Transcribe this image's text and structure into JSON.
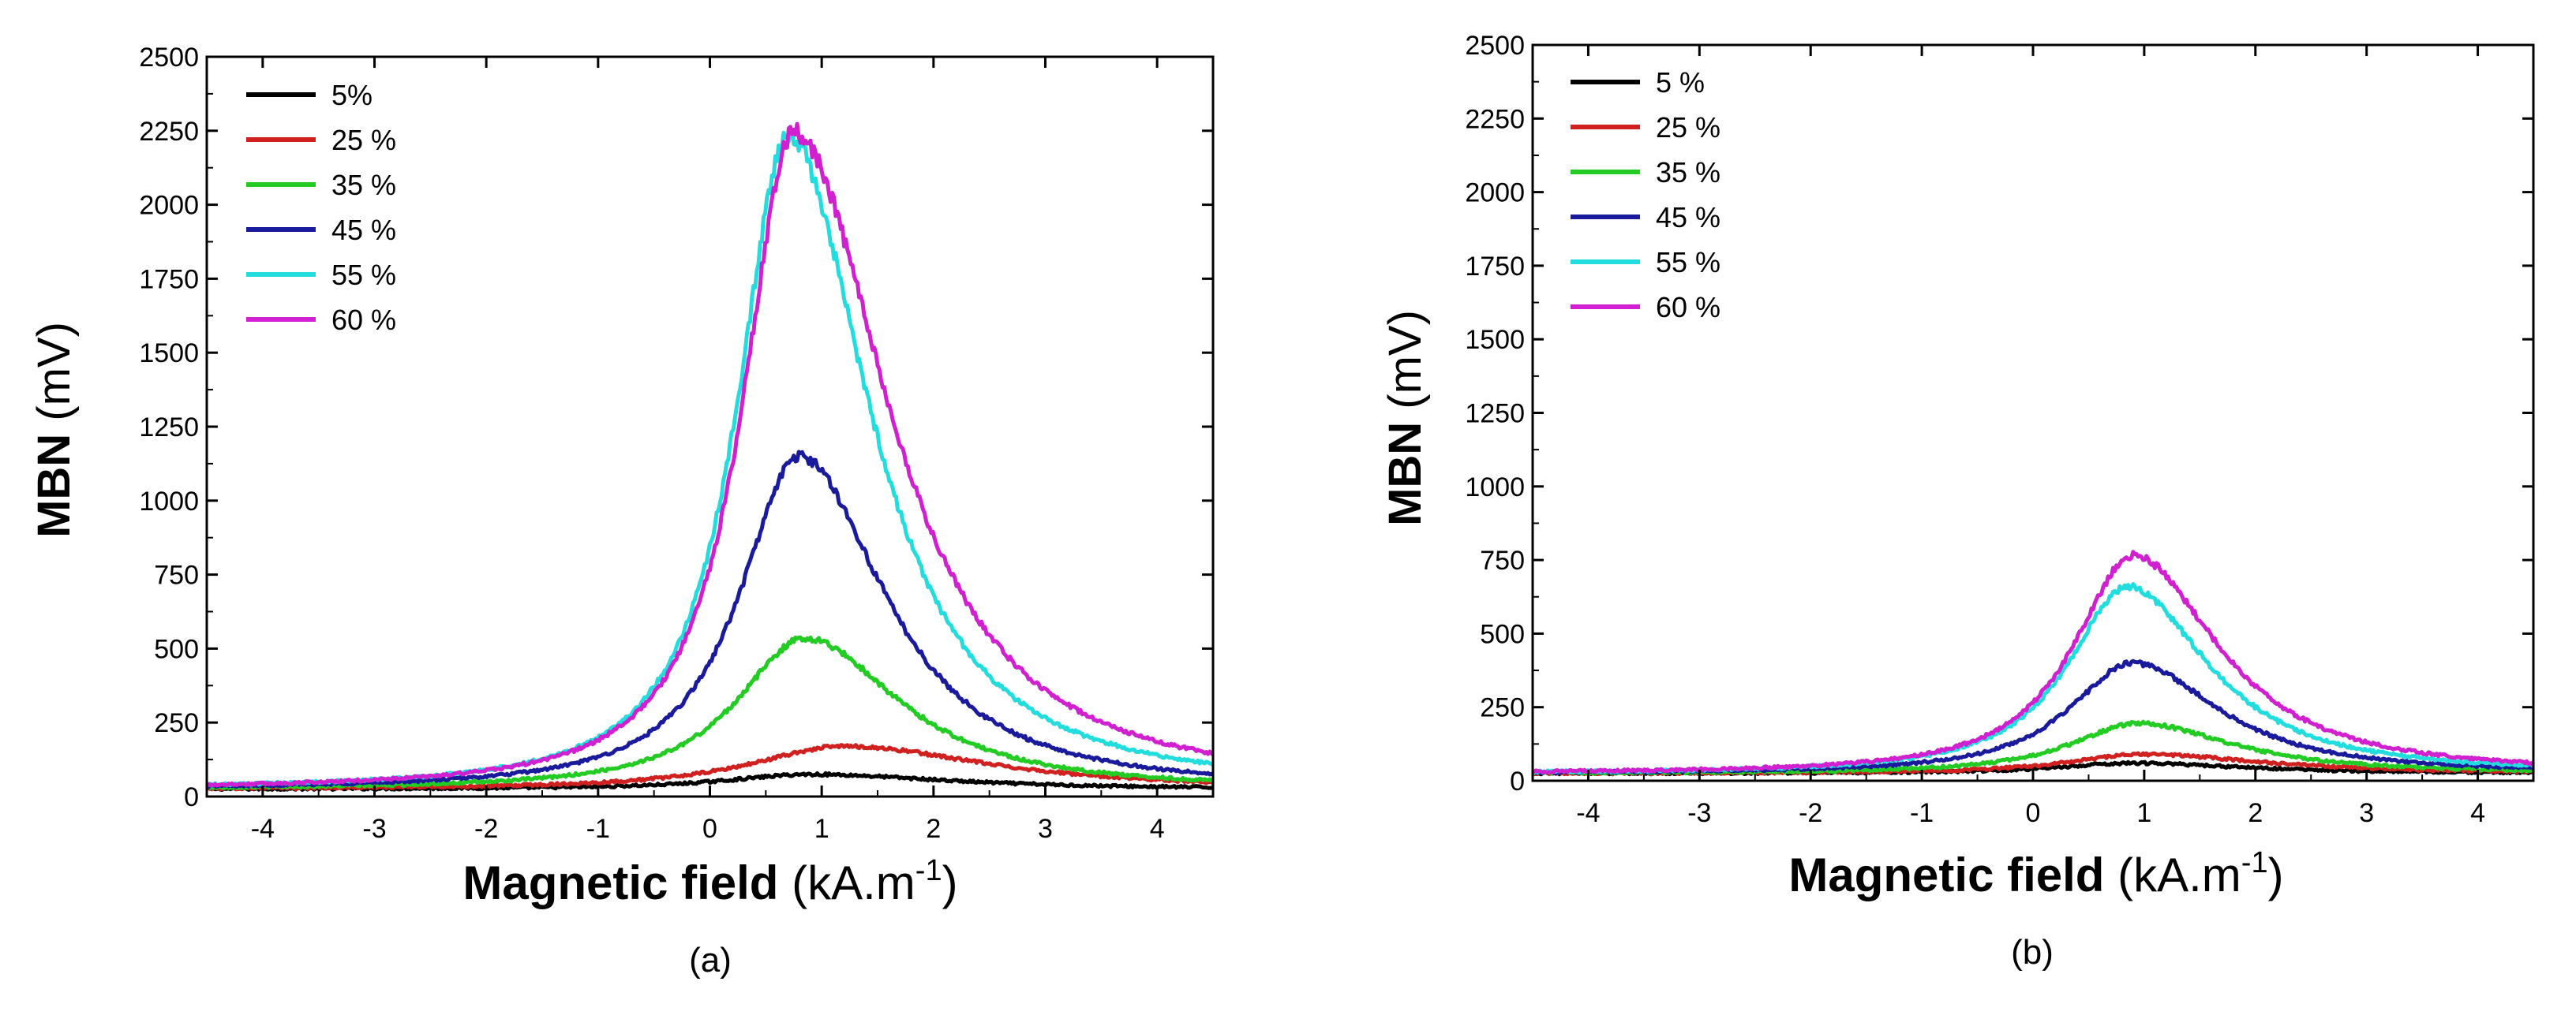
{
  "chart_data": [
    {
      "type": "line",
      "caption": "(a)",
      "xlabel_bold": "Magnetic field",
      "xlabel_unit": "(kA.m",
      "xlabel_sup": "-1",
      "xlabel_close": ")",
      "ylabel_bold": "MBN",
      "ylabel_unit": "(mV)",
      "xlim": [
        -4.5,
        4.5
      ],
      "ylim": [
        0,
        2500
      ],
      "xticks": [
        -4,
        -3,
        -2,
        -1,
        0,
        1,
        2,
        3,
        4
      ],
      "yticks": [
        0,
        250,
        500,
        750,
        1000,
        1250,
        1500,
        1750,
        2000,
        2250,
        2500
      ],
      "legend_position": "top-left",
      "series": [
        {
          "name": "5%",
          "color": "#000000",
          "baseline": 25,
          "peak": 75,
          "peak_x": 0.9,
          "wl": 1.0,
          "wr": 1.6
        },
        {
          "name": "25 %",
          "color": "#d02020",
          "baseline": 25,
          "peak": 170,
          "peak_x": 1.2,
          "wl": 1.1,
          "wr": 1.7
        },
        {
          "name": "35 %",
          "color": "#22cc22",
          "baseline": 25,
          "peak": 535,
          "peak_x": 0.85,
          "wl": 0.8,
          "wr": 1.1
        },
        {
          "name": "45 %",
          "color": "#1a1a9c",
          "baseline": 25,
          "peak": 1150,
          "peak_x": 0.8,
          "wl": 0.7,
          "wr": 1.0
        },
        {
          "name": "55 %",
          "color": "#22dddd",
          "baseline": 25,
          "peak": 2230,
          "peak_x": 0.7,
          "wl": 0.6,
          "wr": 0.95
        },
        {
          "name": "60 %",
          "color": "#d020d0",
          "baseline": 25,
          "peak": 2245,
          "peak_x": 0.75,
          "wl": 0.6,
          "wr": 1.1
        }
      ]
    },
    {
      "type": "line",
      "caption": "(b)",
      "xlabel_bold": "Magnetic field",
      "xlabel_unit": "(kA.m",
      "xlabel_sup": "-1",
      "xlabel_close": ")",
      "ylabel_bold": "MBN",
      "ylabel_unit": "(mV)",
      "xlim": [
        -4.5,
        4.5
      ],
      "ylim": [
        0,
        2500
      ],
      "xticks": [
        -4,
        -3,
        -2,
        -1,
        0,
        1,
        2,
        3,
        4
      ],
      "yticks": [
        0,
        250,
        500,
        750,
        1000,
        1250,
        1500,
        1750,
        2000,
        2250,
        2500
      ],
      "legend_position": "top-left",
      "series": [
        {
          "name": "5 %",
          "color": "#000000",
          "baseline": 25,
          "peak": 60,
          "peak_x": 0.9,
          "wl": 0.9,
          "wr": 1.3
        },
        {
          "name": "25 %",
          "color": "#d02020",
          "baseline": 25,
          "peak": 90,
          "peak_x": 1.0,
          "wl": 0.9,
          "wr": 1.4
        },
        {
          "name": "35 %",
          "color": "#22cc22",
          "baseline": 25,
          "peak": 195,
          "peak_x": 0.95,
          "wl": 0.8,
          "wr": 1.1
        },
        {
          "name": "45 %",
          "color": "#1a1a9c",
          "baseline": 25,
          "peak": 400,
          "peak_x": 0.9,
          "wl": 0.75,
          "wr": 1.0
        },
        {
          "name": "55 %",
          "color": "#22dddd",
          "baseline": 25,
          "peak": 660,
          "peak_x": 0.85,
          "wl": 0.7,
          "wr": 0.95
        },
        {
          "name": "60 %",
          "color": "#d020d0",
          "baseline": 25,
          "peak": 765,
          "peak_x": 0.9,
          "wl": 0.7,
          "wr": 1.0
        }
      ]
    }
  ]
}
